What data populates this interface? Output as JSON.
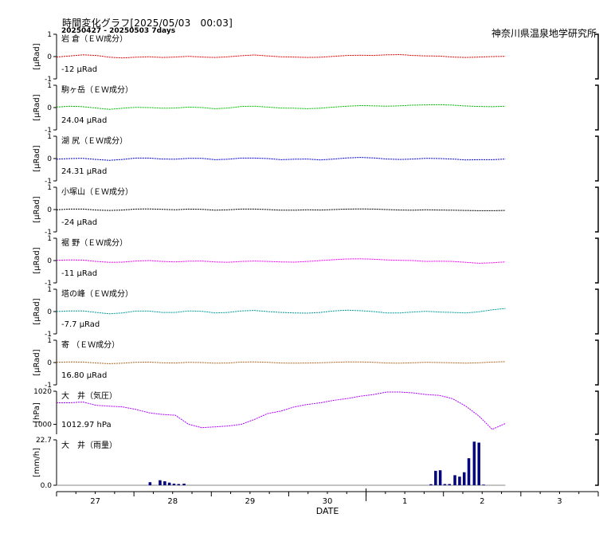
{
  "header": {
    "title": "時間変化グラフ[2025/05/03   00:03]",
    "subtitle": "20250427 - 20250503 7days",
    "institute": "神奈川県温泉地学研究所"
  },
  "chart_data": {
    "type": "line",
    "x": {
      "label": "DATE",
      "tick_labels": [
        "27",
        "28",
        "29",
        "30",
        "1",
        "2",
        "3"
      ],
      "range_days": [
        0,
        7
      ],
      "data_end_day": 5.8,
      "month_boundary_day": 4
    },
    "panels": [
      {
        "name": "岩 倉（ＥＷ成分）",
        "ylabel": "[μRad]",
        "yticks": [
          "1",
          "0",
          "-1"
        ],
        "ylim": [
          -1,
          1
        ],
        "offset_label": "-12 μRad",
        "color": "#dd0000",
        "y": [
          -0.02,
          0.03,
          0.08,
          0.05,
          -0.03,
          -0.06,
          -0.03,
          -0.01,
          -0.04,
          -0.02,
          0.01,
          -0.02,
          -0.04,
          -0.01,
          0.04,
          0.07,
          0.03,
          -0.01,
          -0.02,
          -0.04,
          -0.03,
          0.01,
          0.05,
          0.06,
          0.05,
          0.08,
          0.09,
          0.05,
          0.03,
          0.02,
          -0.02,
          -0.04,
          -0.02,
          0.0,
          0.01
        ]
      },
      {
        "name": "駒ヶ岳（ＥＷ成分）",
        "ylabel": "[μRad]",
        "yticks": [
          "1",
          "0",
          "-1"
        ],
        "ylim": [
          -1,
          1
        ],
        "offset_label": "24.04 μRad",
        "color": "#00bb00",
        "y": [
          0.02,
          0.06,
          0.04,
          -0.02,
          -0.08,
          -0.03,
          0.01,
          0.0,
          -0.03,
          -0.02,
          0.02,
          0.0,
          -0.05,
          -0.02,
          0.05,
          0.06,
          0.02,
          -0.02,
          -0.03,
          -0.05,
          -0.03,
          0.02,
          0.06,
          0.09,
          0.08,
          0.06,
          0.08,
          0.11,
          0.12,
          0.13,
          0.11,
          0.07,
          0.05,
          0.04,
          0.06
        ]
      },
      {
        "name": "湖 尻（ＥＷ成分）",
        "ylabel": "[μRad]",
        "yticks": [
          "1",
          "0",
          "-1"
        ],
        "ylim": [
          -1,
          1
        ],
        "offset_label": "24.31 μRad",
        "color": "#0000cc",
        "y": [
          -0.03,
          0.0,
          0.01,
          -0.04,
          -0.08,
          -0.04,
          0.02,
          0.02,
          -0.02,
          -0.03,
          0.01,
          0.01,
          -0.05,
          -0.03,
          0.02,
          0.02,
          0.0,
          -0.05,
          -0.03,
          -0.02,
          -0.06,
          -0.02,
          0.03,
          0.05,
          0.03,
          -0.02,
          -0.04,
          -0.02,
          0.01,
          0.0,
          -0.02,
          -0.06,
          -0.05,
          -0.05,
          -0.02
        ]
      },
      {
        "name": "小塚山（ＥＷ成分）",
        "ylabel": "[μRad]",
        "yticks": [
          "1",
          "0",
          "-1"
        ],
        "ylim": [
          -1,
          1
        ],
        "offset_label": "-24 μRad",
        "color": "#000000",
        "y": [
          -0.01,
          0.02,
          0.02,
          -0.02,
          -0.04,
          -0.02,
          0.02,
          0.03,
          0.01,
          -0.01,
          0.02,
          0.01,
          -0.03,
          -0.01,
          0.02,
          0.02,
          0.0,
          -0.03,
          -0.03,
          -0.01,
          -0.02,
          0.0,
          0.02,
          0.03,
          0.02,
          0.0,
          -0.02,
          -0.03,
          -0.01,
          -0.02,
          -0.03,
          -0.04,
          -0.05,
          -0.05,
          -0.04
        ]
      },
      {
        "name": "裾 野（ＥＷ成分）",
        "ylabel": "[μRad]",
        "yticks": [
          "1",
          "0",
          "-1"
        ],
        "ylim": [
          -1,
          1
        ],
        "offset_label": "-11 μRad",
        "color": "#ee00ee",
        "y": [
          0.01,
          0.03,
          0.02,
          -0.04,
          -0.08,
          -0.07,
          -0.02,
          0.0,
          -0.04,
          -0.06,
          -0.03,
          -0.02,
          -0.06,
          -0.08,
          -0.04,
          -0.02,
          -0.04,
          -0.06,
          -0.07,
          -0.04,
          0.0,
          0.04,
          0.07,
          0.08,
          0.06,
          0.03,
          0.01,
          0.0,
          -0.04,
          -0.03,
          -0.04,
          -0.08,
          -0.12,
          -0.1,
          -0.06
        ]
      },
      {
        "name": "塔の峰（ＥＷ成分）",
        "ylabel": "[μRad]",
        "yticks": [
          "1",
          "0",
          "-1"
        ],
        "ylim": [
          -1,
          1
        ],
        "offset_label": "-7.7 μRad",
        "color": "#009999",
        "y": [
          0.0,
          0.03,
          0.03,
          -0.04,
          -0.1,
          -0.06,
          0.02,
          0.02,
          -0.04,
          -0.04,
          0.03,
          0.01,
          -0.06,
          -0.04,
          0.03,
          0.05,
          0.0,
          -0.04,
          -0.06,
          -0.07,
          -0.04,
          0.03,
          0.06,
          0.04,
          0.0,
          -0.06,
          -0.06,
          -0.02,
          0.01,
          -0.02,
          -0.04,
          -0.06,
          -0.01,
          0.08,
          0.14
        ]
      },
      {
        "name": "寄  （ＥＷ成分）",
        "ylabel": "[μRad]",
        "yticks": [
          "1",
          "0",
          "-1"
        ],
        "ylim": [
          -1,
          1
        ],
        "offset_label": "16.80 μRad",
        "color": "#aa6622",
        "y": [
          0.01,
          0.03,
          0.02,
          -0.02,
          -0.05,
          -0.03,
          0.01,
          0.02,
          -0.01,
          -0.02,
          0.01,
          0.0,
          -0.03,
          -0.02,
          0.02,
          0.03,
          0.01,
          -0.02,
          -0.03,
          -0.02,
          -0.01,
          0.01,
          0.03,
          0.03,
          0.01,
          -0.02,
          -0.03,
          -0.01,
          0.01,
          0.0,
          -0.01,
          -0.03,
          -0.01,
          0.02,
          0.04
        ]
      },
      {
        "name": "大　井（気圧）",
        "ylabel": "[hPa]",
        "yticks": [
          "1020",
          "1000"
        ],
        "ylim": [
          994,
          1020
        ],
        "offset_label": "1012.97 hPa",
        "color": "#aa00ff",
        "y": [
          1013.0,
          1013.0,
          1013.5,
          1011.5,
          1011.0,
          1010.5,
          1009.0,
          1007.0,
          1006.0,
          1005.5,
          1000.0,
          998.0,
          998.5,
          999.0,
          1000.0,
          1003.0,
          1006.5,
          1008.0,
          1010.5,
          1012.0,
          1013.0,
          1014.5,
          1015.5,
          1017.0,
          1018.0,
          1019.5,
          1019.5,
          1019.0,
          1018.0,
          1017.5,
          1015.5,
          1011.0,
          1005.0,
          997.0,
          1000.5
        ]
      }
    ],
    "rain_panel": {
      "name": "大　井（雨量）",
      "ylabel": "[mm/h]",
      "yticks": [
        "22.7",
        "0.0"
      ],
      "ylim": [
        0,
        22.7
      ],
      "color": "#000080",
      "bars": [
        {
          "t": 1.19,
          "v": 1.5
        },
        {
          "t": 1.32,
          "v": 2.5
        },
        {
          "t": 1.38,
          "v": 2.0
        },
        {
          "t": 1.44,
          "v": 1.3
        },
        {
          "t": 1.5,
          "v": 0.8
        },
        {
          "t": 1.56,
          "v": 0.6
        },
        {
          "t": 1.63,
          "v": 0.8
        },
        {
          "t": 4.82,
          "v": 0.5
        },
        {
          "t": 4.88,
          "v": 7.2
        },
        {
          "t": 4.94,
          "v": 7.5
        },
        {
          "t": 5.0,
          "v": 0.6
        },
        {
          "t": 5.06,
          "v": 0.6
        },
        {
          "t": 5.13,
          "v": 5.0
        },
        {
          "t": 5.19,
          "v": 4.3
        },
        {
          "t": 5.25,
          "v": 6.5
        },
        {
          "t": 5.31,
          "v": 13.5
        },
        {
          "t": 5.38,
          "v": 21.8
        },
        {
          "t": 5.44,
          "v": 21.3
        },
        {
          "t": 5.5,
          "v": 0.3
        }
      ]
    }
  }
}
